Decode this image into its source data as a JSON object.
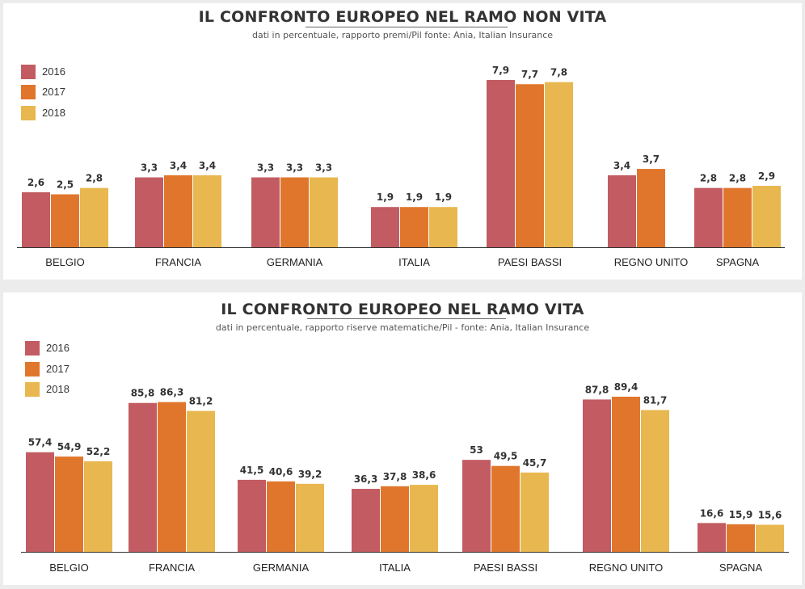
{
  "colors": {
    "2016": "#c25c62",
    "2017": "#e0762c",
    "2018": "#e9b74f",
    "baseline": "#333333"
  },
  "chart_data": [
    {
      "type": "bar",
      "title": "IL CONFRONTO EUROPEO NEL RAMO NON VITA",
      "subtitle": "dati in percentuale, rapporto premi/Pil  fonte: Ania, Italian Insurance",
      "categories": [
        "BELGIO",
        "FRANCIA",
        "GERMANIA",
        "ITALIA",
        "PAESI BASSI",
        "REGNO UNITO",
        "SPAGNA"
      ],
      "series": [
        {
          "name": "2016",
          "values": [
            2.6,
            3.3,
            3.3,
            1.9,
            7.9,
            3.4,
            2.8
          ],
          "labels": [
            "2,6",
            "3,3",
            "3,3",
            "1,9",
            "7,9",
            "3,4",
            "2,8"
          ]
        },
        {
          "name": "2017",
          "values": [
            2.5,
            3.4,
            3.3,
            1.9,
            7.7,
            3.7,
            2.8
          ],
          "labels": [
            "2,5",
            "3,4",
            "3,3",
            "1,9",
            "7,7",
            "3,7",
            "2,8"
          ]
        },
        {
          "name": "2018",
          "values": [
            2.8,
            3.4,
            3.3,
            1.9,
            7.8,
            null,
            2.9
          ],
          "labels": [
            "2,8",
            "3,4",
            "3,3",
            "1,9",
            "7,8",
            null,
            "2,9"
          ]
        }
      ],
      "ylim": [
        0,
        7.9
      ],
      "legend": "top-left",
      "grid": false
    },
    {
      "type": "bar",
      "title": "IL CONFRONTO EUROPEO NEL RAMO VITA",
      "subtitle": "dati in percentuale, rapporto riserve matematiche/Pil - fonte: Ania, Italian Insurance",
      "categories": [
        "BELGIO",
        "FRANCIA",
        "GERMANIA",
        "ITALIA",
        "PAESI BASSI",
        "REGNO UNITO",
        "SPAGNA"
      ],
      "series": [
        {
          "name": "2016",
          "values": [
            57.4,
            85.8,
            41.5,
            36.3,
            53,
            87.8,
            16.6
          ],
          "labels": [
            "57,4",
            "85,8",
            "41,5",
            "36,3",
            "53",
            "87,8",
            "16,6"
          ]
        },
        {
          "name": "2017",
          "values": [
            54.9,
            86.3,
            40.6,
            37.8,
            49.5,
            89.4,
            15.9
          ],
          "labels": [
            "54,9",
            "86,3",
            "40,6",
            "37,8",
            "49,5",
            "89,4",
            "15,9"
          ]
        },
        {
          "name": "2018",
          "values": [
            52.2,
            81.2,
            39.2,
            38.6,
            45.7,
            81.7,
            15.6
          ],
          "labels": [
            "52,2",
            "81,2",
            "39,2",
            "38,6",
            "45,7",
            "81,7",
            "15,6"
          ]
        }
      ],
      "ylim": [
        0,
        89.4
      ],
      "legend": "top-left",
      "grid": false
    }
  ]
}
